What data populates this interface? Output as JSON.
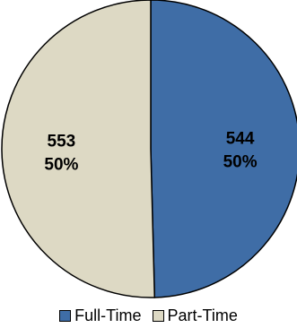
{
  "chart_data": {
    "type": "pie",
    "title": "",
    "slices": [
      {
        "label": "Full-Time",
        "value": 544,
        "percent_label": "50%",
        "color": "#3F6DA6"
      },
      {
        "label": "Part-Time",
        "value": 553,
        "percent_label": "50%",
        "color": "#DDD9C4"
      }
    ],
    "legend": {
      "position": "bottom"
    }
  }
}
